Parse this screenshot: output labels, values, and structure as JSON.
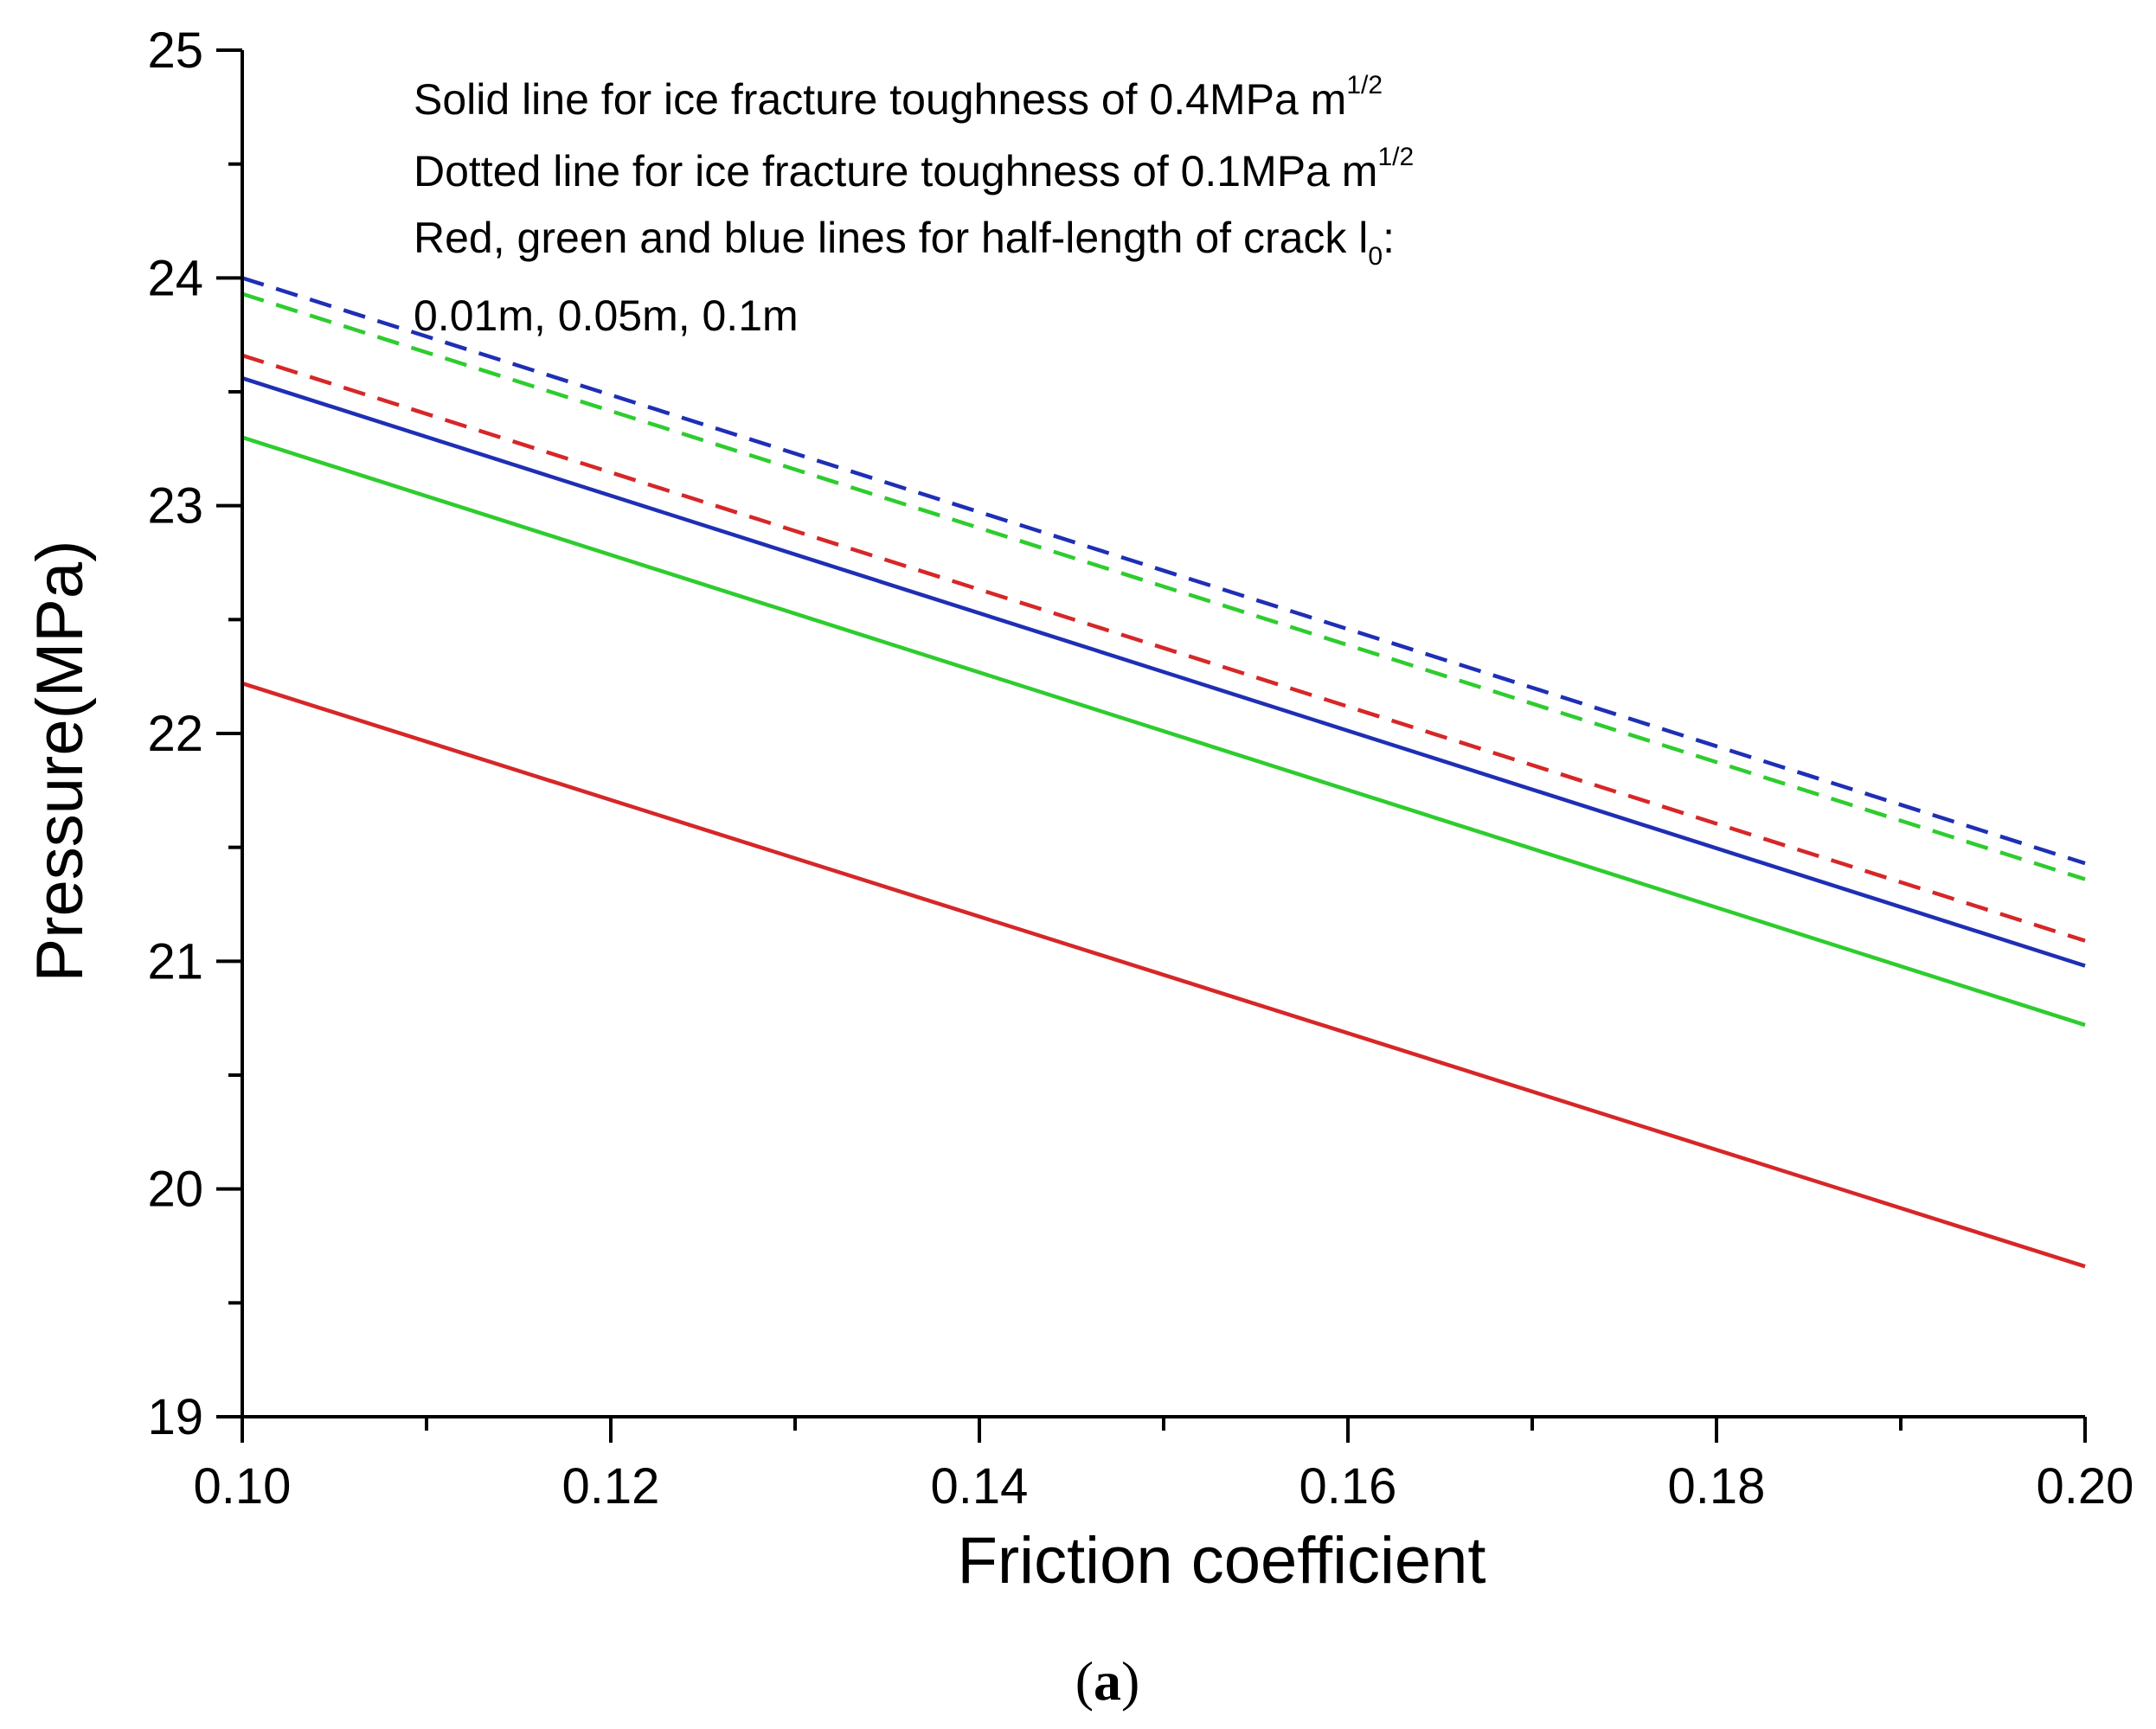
{
  "chart_data": {
    "type": "line",
    "xlabel": "Friction coefficient",
    "ylabel": "Pressure(MPa)",
    "xlim": [
      0.1,
      0.2
    ],
    "ylim": [
      19,
      25
    ],
    "x_ticks": [
      "0.10",
      "0.12",
      "0.14",
      "0.16",
      "0.18",
      "0.20"
    ],
    "y_ticks": [
      "19",
      "20",
      "21",
      "22",
      "23",
      "24",
      "25"
    ],
    "grid": false,
    "annotation": {
      "line1": {
        "text": "Solid line for ice fracture toughness of 0.4MPa m",
        "sup": "1/2"
      },
      "line2": {
        "text": "Dotted line for ice fracture toughness of 0.1MPa m",
        "sup": "1/2"
      },
      "line3": {
        "text": "Red, green and blue lines for half-length of crack l",
        "sub": "0",
        "after": ":"
      },
      "line4": {
        "text": "0.01m, 0.05m, 0.1m"
      }
    },
    "series": [
      {
        "name": "0.4MPa m1/2, l0=0.01m",
        "color": "#d62728",
        "style": "solid",
        "x": [
          0.1,
          0.2
        ],
        "y": [
          22.22,
          19.66
        ]
      },
      {
        "name": "0.4MPa m1/2, l0=0.05m",
        "color": "#2ecc2e",
        "style": "solid",
        "x": [
          0.1,
          0.2
        ],
        "y": [
          23.3,
          20.72
        ]
      },
      {
        "name": "0.4MPa m1/2, l0=0.1m",
        "color": "#1f2fb4",
        "style": "solid",
        "x": [
          0.1,
          0.2
        ],
        "y": [
          23.56,
          20.98
        ]
      },
      {
        "name": "0.1MPa m1/2, l0=0.01m",
        "color": "#d62728",
        "style": "dashed",
        "x": [
          0.1,
          0.2
        ],
        "y": [
          23.66,
          21.09
        ]
      },
      {
        "name": "0.1MPa m1/2, l0=0.05m",
        "color": "#2ecc2e",
        "style": "dashed",
        "x": [
          0.1,
          0.2
        ],
        "y": [
          23.93,
          21.36
        ]
      },
      {
        "name": "0.1MPa m1/2, l0=0.1m",
        "color": "#1f2fb4",
        "style": "dashed",
        "x": [
          0.1,
          0.2
        ],
        "y": [
          24.0,
          21.43
        ]
      }
    ]
  },
  "caption": {
    "open": "(",
    "letter": "a",
    "close": ")"
  }
}
